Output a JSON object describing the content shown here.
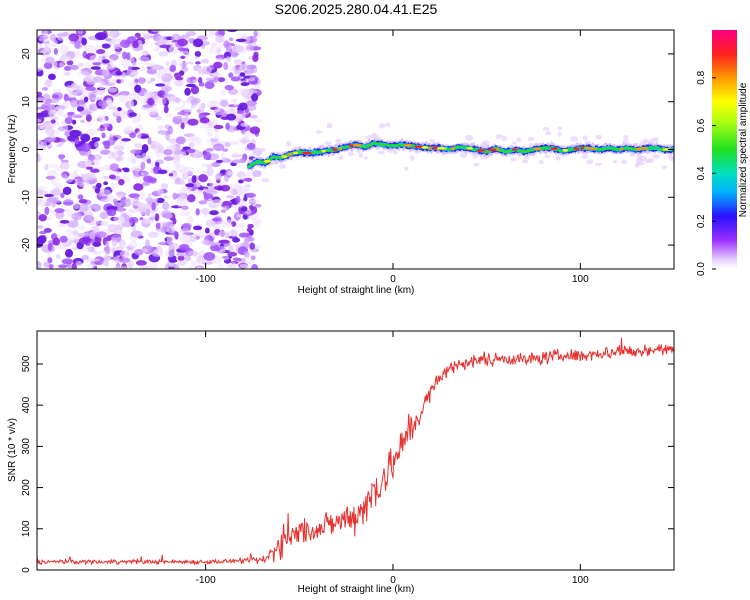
{
  "title": "S206.2025.280.04.41.E25",
  "colors": {
    "snr_line": "#e8302e",
    "noise_purple": "#8a2be2",
    "track_blue": "#1f2bff",
    "track_green": "#22dd22",
    "track_red": "#ff1a1a"
  },
  "chart_data": [
    {
      "type": "heatmap",
      "name": "spectrogram",
      "xlabel": "Height of straight line (km)",
      "ylabel": "Frequency (Hz)",
      "xlim": [
        -190,
        150
      ],
      "ylim": [
        -25,
        25
      ],
      "xticks": [
        -100,
        0,
        100
      ],
      "xtick_labels": [
        "-100",
        "0",
        "100"
      ],
      "yticks": [
        -20,
        -10,
        0,
        10,
        20
      ],
      "ytick_labels": [
        "-20",
        "-10",
        "0",
        "10",
        "20"
      ],
      "noise_region_x": [
        -190,
        -72
      ],
      "signal_track": {
        "x": [
          -77,
          -72,
          -68,
          -64,
          -60,
          -55,
          -50,
          -45,
          -40,
          -35,
          -30,
          -25,
          -20,
          -15,
          -10,
          -5,
          0,
          5,
          10,
          15,
          20,
          25,
          30,
          35,
          40,
          45,
          50,
          55,
          60,
          65,
          70,
          75,
          80,
          85,
          90,
          95,
          100,
          105,
          110,
          115,
          120,
          125,
          130,
          135,
          140,
          145,
          150
        ],
        "freq": [
          -3.5,
          -2.5,
          -2.8,
          -1.5,
          -1.8,
          -1.0,
          -0.5,
          -0.8,
          -0.5,
          -0.2,
          0.0,
          0.5,
          1.0,
          0.5,
          1.3,
          1.0,
          0.8,
          1.0,
          0.8,
          0.5,
          0.3,
          0.3,
          0.0,
          0.5,
          0.3,
          0.0,
          -0.5,
          0.2,
          -0.5,
          0.0,
          -0.5,
          0.0,
          0.3,
          0.3,
          -0.3,
          0.0,
          0.3,
          0.3,
          0.0,
          0.3,
          0.0,
          0.3,
          0.0,
          0.3,
          0.3,
          0.0,
          0.0
        ]
      },
      "colorbar": {
        "label": "Normalized spectral amplitude",
        "range": [
          0.0,
          1.0
        ],
        "ticks": [
          0.0,
          0.2,
          0.4,
          0.6,
          0.8
        ],
        "tick_labels": [
          "0.0",
          "0.2",
          "0.4",
          "0.6",
          "0.8"
        ]
      }
    },
    {
      "type": "line",
      "name": "snr",
      "xlabel": "Height of straight line (km)",
      "ylabel": "SNR (10 * v/v)",
      "xlim": [
        -190,
        150
      ],
      "ylim": [
        0,
        580
      ],
      "xticks": [
        -100,
        0,
        100
      ],
      "xtick_labels": [
        "-100",
        "0",
        "100"
      ],
      "yticks": [
        0,
        100,
        200,
        300,
        400,
        500
      ],
      "ytick_labels": [
        "0",
        "100",
        "200",
        "300",
        "400",
        "500"
      ],
      "series": [
        {
          "name": "SNR",
          "x": [
            -190,
            -150,
            -100,
            -75,
            -68,
            -65,
            -60,
            -55,
            -50,
            -45,
            -40,
            -35,
            -30,
            -25,
            -20,
            -15,
            -10,
            -5,
            0,
            5,
            10,
            15,
            20,
            25,
            30,
            40,
            50,
            60,
            70,
            80,
            90,
            100,
            110,
            120,
            130,
            140,
            150
          ],
          "values": [
            20,
            20,
            20,
            22,
            25,
            40,
            65,
            80,
            90,
            95,
            100,
            110,
            115,
            125,
            135,
            155,
            190,
            230,
            260,
            300,
            345,
            385,
            430,
            465,
            490,
            505,
            510,
            515,
            510,
            515,
            520,
            520,
            525,
            530,
            530,
            535,
            535
          ],
          "noise": [
            5,
            5,
            5,
            6,
            12,
            25,
            30,
            32,
            30,
            28,
            25,
            28,
            30,
            35,
            40,
            45,
            55,
            50,
            45,
            40,
            35,
            25,
            20,
            18,
            15,
            15,
            15,
            15,
            15,
            15,
            15,
            15,
            15,
            15,
            15,
            15,
            15
          ]
        }
      ]
    }
  ]
}
